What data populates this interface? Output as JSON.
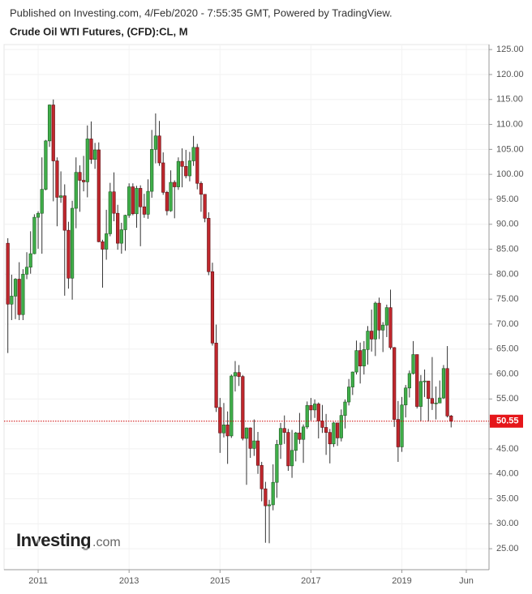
{
  "chart_data": {
    "type": "candlestick",
    "header": "Published on Investing.com, 4/Feb/2020 - 7:55:35 GMT, Powered by TradingView.",
    "title": "Crude Oil WTI Futures, (CFD):CL, M",
    "watermark": {
      "brand": "Investing",
      "suffix": ".com"
    },
    "up_color": "#3fae49",
    "down_color": "#c0272d",
    "grid": true,
    "x": [
      "2010-05",
      "2010-06",
      "2010-07",
      "2010-08",
      "2010-09",
      "2010-10",
      "2010-11",
      "2010-12",
      "2011-01",
      "2011-02",
      "2011-03",
      "2011-04",
      "2011-05",
      "2011-06",
      "2011-07",
      "2011-08",
      "2011-09",
      "2011-10",
      "2011-11",
      "2011-12",
      "2012-01",
      "2012-02",
      "2012-03",
      "2012-04",
      "2012-05",
      "2012-06",
      "2012-07",
      "2012-08",
      "2012-09",
      "2012-10",
      "2012-11",
      "2012-12",
      "2013-01",
      "2013-02",
      "2013-03",
      "2013-04",
      "2013-05",
      "2013-06",
      "2013-07",
      "2013-08",
      "2013-09",
      "2013-10",
      "2013-11",
      "2013-12",
      "2014-01",
      "2014-02",
      "2014-03",
      "2014-04",
      "2014-05",
      "2014-06",
      "2014-07",
      "2014-08",
      "2014-09",
      "2014-10",
      "2014-11",
      "2014-12",
      "2015-01",
      "2015-02",
      "2015-03",
      "2015-04",
      "2015-05",
      "2015-06",
      "2015-07",
      "2015-08",
      "2015-09",
      "2015-10",
      "2015-11",
      "2015-12",
      "2016-01",
      "2016-02",
      "2016-03",
      "2016-04",
      "2016-05",
      "2016-06",
      "2016-07",
      "2016-08",
      "2016-09",
      "2016-10",
      "2016-11",
      "2016-12",
      "2017-01",
      "2017-02",
      "2017-03",
      "2017-04",
      "2017-05",
      "2017-06",
      "2017-07",
      "2017-08",
      "2017-09",
      "2017-10",
      "2017-11",
      "2017-12",
      "2018-01",
      "2018-02",
      "2018-03",
      "2018-04",
      "2018-05",
      "2018-06",
      "2018-07",
      "2018-08",
      "2018-09",
      "2018-10",
      "2018-11",
      "2018-12",
      "2019-01",
      "2019-02",
      "2019-03",
      "2019-04",
      "2019-05",
      "2019-06",
      "2019-07",
      "2019-08",
      "2019-09",
      "2019-10",
      "2019-11",
      "2019-12",
      "2020-01",
      "2020-02"
    ],
    "open": [
      86.2,
      74.0,
      75.6,
      79.0,
      71.9,
      80.0,
      81.4,
      84.1,
      91.4,
      92.2,
      97.0,
      106.7,
      113.9,
      102.7,
      95.4,
      95.7,
      88.8,
      79.2,
      93.2,
      100.4,
      98.8,
      98.5,
      107.1,
      103.0,
      104.9,
      86.5,
      85.0,
      88.1,
      96.5,
      92.2,
      86.2,
      88.9,
      91.8,
      97.5,
      92.1,
      97.2,
      93.5,
      92.0,
      96.6,
      105.0,
      107.7,
      102.3,
      96.4,
      92.7,
      98.4,
      97.5,
      102.6,
      101.6,
      99.7,
      102.7,
      105.4,
      98.2,
      96.0,
      91.2,
      80.5,
      66.2,
      53.3,
      48.2,
      49.8,
      47.6,
      59.6,
      60.3,
      59.5,
      47.1,
      49.2,
      45.1,
      46.6,
      41.7,
      37.0,
      33.6,
      33.8,
      38.3,
      45.9,
      49.1,
      48.3,
      41.6,
      44.7,
      48.2,
      46.9,
      49.4,
      53.7,
      52.8,
      54.0,
      50.6,
      49.3,
      48.3,
      46.0,
      50.2,
      47.2,
      51.7,
      54.4,
      57.4,
      60.4,
      64.7,
      61.6,
      64.9,
      68.6,
      67.0,
      74.2,
      68.8,
      69.8,
      73.3,
      65.3,
      50.9,
      45.4,
      53.8,
      57.2,
      60.1,
      63.9,
      53.5,
      58.5,
      58.6,
      55.1,
      54.1,
      54.2,
      55.2,
      61.1,
      51.6
    ],
    "high": [
      87.2,
      79.9,
      79.2,
      82.4,
      81.0,
      84.4,
      88.6,
      92.0,
      92.6,
      103.4,
      106.9,
      114.0,
      115.0,
      103.4,
      100.6,
      98.0,
      90.5,
      94.7,
      103.4,
      101.8,
      103.7,
      109.8,
      110.6,
      106.3,
      106.4,
      86.9,
      92.9,
      98.3,
      100.4,
      93.9,
      90.3,
      91.9,
      98.2,
      98.2,
      97.7,
      97.8,
      96.1,
      99.0,
      108.9,
      112.2,
      110.7,
      104.4,
      96.7,
      100.8,
      98.8,
      103.4,
      105.2,
      104.9,
      104.5,
      107.7,
      106.1,
      98.6,
      96.0,
      92.4,
      82.3,
      69.9,
      55.2,
      54.2,
      52.5,
      59.9,
      62.6,
      61.8,
      59.8,
      49.3,
      49.3,
      50.9,
      48.4,
      42.4,
      38.4,
      34.8,
      41.9,
      46.8,
      50.2,
      51.7,
      49.0,
      48.8,
      48.4,
      52.2,
      49.9,
      54.5,
      55.2,
      54.9,
      54.3,
      53.8,
      52.0,
      49.0,
      50.4,
      50.2,
      52.9,
      54.9,
      59.0,
      60.5,
      66.7,
      66.3,
      66.6,
      69.6,
      72.9,
      74.5,
      75.3,
      70.4,
      73.9,
      76.9,
      65.4,
      54.6,
      55.4,
      57.8,
      60.7,
      66.6,
      63.9,
      59.8,
      60.9,
      58.6,
      63.4,
      57.5,
      58.7,
      61.8,
      65.6,
      51.8
    ],
    "low": [
      64.2,
      70.8,
      71.0,
      70.8,
      70.8,
      79.0,
      80.1,
      84.0,
      85.1,
      84.1,
      96.8,
      105.5,
      94.6,
      89.6,
      94.3,
      75.7,
      77.1,
      74.9,
      89.2,
      92.5,
      96.6,
      95.4,
      102.1,
      101.1,
      86.4,
      77.3,
      82.9,
      87.6,
      90.6,
      84.9,
      84.1,
      84.7,
      91.3,
      91.8,
      89.3,
      85.6,
      91.3,
      91.1,
      95.3,
      102.2,
      101.7,
      95.9,
      91.8,
      92.5,
      91.2,
      96.9,
      97.4,
      99.2,
      98.6,
      101.7,
      97.0,
      92.5,
      90.4,
      79.8,
      65.7,
      52.4,
      44.2,
      47.3,
      42.0,
      47.2,
      56.5,
      57.6,
      46.7,
      37.8,
      43.2,
      43.6,
      40.0,
      34.5,
      26.2,
      26.1,
      32.7,
      35.2,
      43.0,
      46.0,
      40.6,
      39.2,
      42.5,
      46.0,
      42.2,
      49.0,
      50.7,
      51.2,
      47.1,
      48.2,
      43.8,
      42.1,
      45.4,
      45.6,
      46.5,
      49.1,
      53.7,
      55.8,
      59.9,
      58.1,
      59.9,
      61.9,
      64.5,
      63.6,
      67.0,
      64.4,
      67.4,
      64.9,
      49.4,
      42.4,
      44.4,
      51.3,
      55.3,
      59.9,
      53.1,
      50.6,
      55.4,
      50.5,
      52.8,
      50.9,
      54.2,
      55.0,
      51.3,
      49.3
    ],
    "close": [
      74.0,
      75.6,
      79.0,
      71.9,
      80.0,
      81.4,
      84.1,
      91.4,
      92.2,
      97.0,
      106.7,
      113.9,
      102.7,
      95.4,
      95.7,
      88.8,
      79.2,
      93.2,
      100.4,
      98.8,
      98.5,
      107.1,
      103.0,
      104.9,
      86.5,
      85.0,
      88.1,
      96.5,
      92.2,
      86.2,
      88.9,
      91.8,
      97.5,
      92.1,
      97.2,
      93.5,
      92.0,
      96.6,
      105.0,
      107.7,
      102.3,
      96.4,
      92.7,
      98.4,
      97.5,
      102.6,
      101.6,
      99.7,
      102.7,
      105.4,
      98.2,
      96.0,
      91.2,
      80.5,
      66.2,
      53.3,
      48.2,
      49.8,
      47.6,
      59.6,
      60.3,
      59.5,
      47.1,
      49.2,
      45.1,
      46.6,
      41.7,
      37.0,
      33.6,
      33.8,
      38.3,
      45.9,
      49.1,
      48.3,
      41.6,
      44.7,
      48.2,
      46.9,
      49.4,
      53.7,
      52.8,
      54.0,
      50.6,
      49.3,
      48.3,
      46.0,
      50.2,
      47.2,
      51.7,
      54.4,
      57.4,
      60.4,
      64.7,
      61.6,
      64.9,
      68.6,
      67.0,
      74.2,
      68.8,
      69.8,
      73.3,
      65.3,
      50.9,
      45.4,
      53.8,
      57.2,
      60.1,
      63.9,
      53.5,
      58.5,
      58.6,
      55.1,
      54.1,
      54.2,
      55.2,
      61.1,
      51.6,
      50.55
    ],
    "xlim": [
      "2010-04",
      "2020-12"
    ],
    "xticks": [
      {
        "value": "2011-01",
        "label": "2011"
      },
      {
        "value": "2013-01",
        "label": "2013"
      },
      {
        "value": "2015-01",
        "label": "2015"
      },
      {
        "value": "2017-01",
        "label": "2017"
      },
      {
        "value": "2019-01",
        "label": "2019"
      },
      {
        "value": "2020-06",
        "label": "Jun"
      }
    ],
    "ylim": [
      20.8,
      126
    ],
    "yticks": [
      {
        "value": 25,
        "label": "25.00"
      },
      {
        "value": 30,
        "label": "30.00"
      },
      {
        "value": 35,
        "label": "35.00"
      },
      {
        "value": 40,
        "label": "40.00"
      },
      {
        "value": 45,
        "label": "45.00"
      },
      {
        "value": 50,
        "label": "50.00"
      },
      {
        "value": 55,
        "label": "55.00"
      },
      {
        "value": 60,
        "label": "60.00"
      },
      {
        "value": 65,
        "label": "65.00"
      },
      {
        "value": 70,
        "label": "70.00"
      },
      {
        "value": 75,
        "label": "75.00"
      },
      {
        "value": 80,
        "label": "80.00"
      },
      {
        "value": 85,
        "label": "85.00"
      },
      {
        "value": 90,
        "label": "90.00"
      },
      {
        "value": 95,
        "label": "95.00"
      },
      {
        "value": 100,
        "label": "100.00"
      },
      {
        "value": 105,
        "label": "105.00"
      },
      {
        "value": 110,
        "label": "110.00"
      },
      {
        "value": 115,
        "label": "115.00"
      },
      {
        "value": 120,
        "label": "120.00"
      },
      {
        "value": 125,
        "label": "125.00"
      }
    ]
  }
}
